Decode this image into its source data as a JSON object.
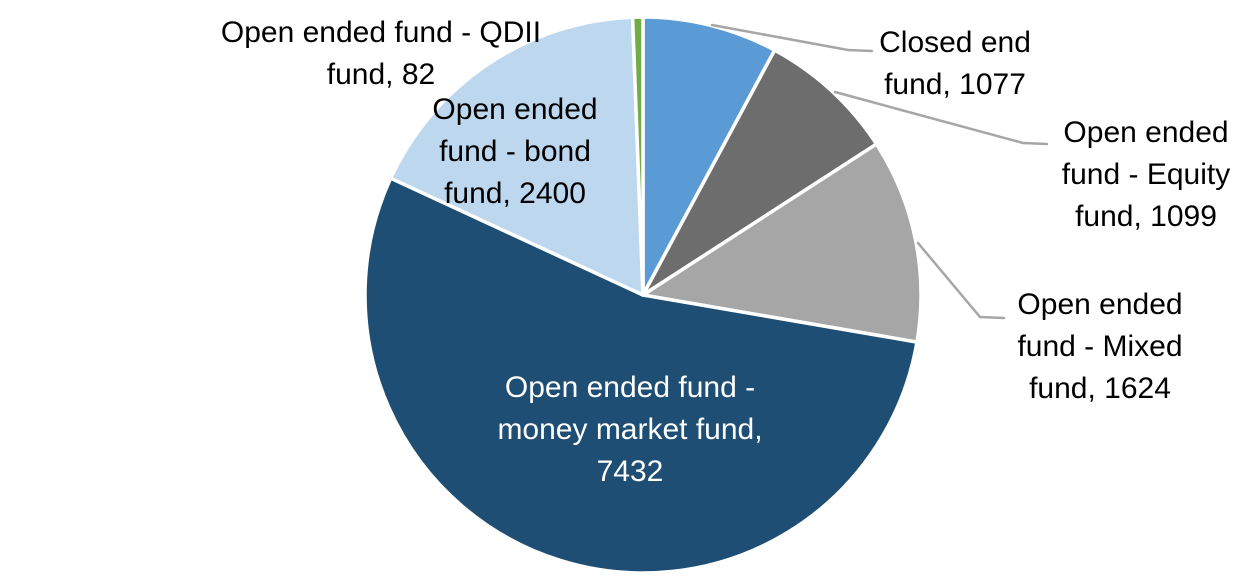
{
  "chart_data": {
    "type": "pie",
    "title": "",
    "legend_position": "none",
    "start_angle_deg": 0,
    "direction": "clockwise",
    "total": 13714,
    "data_label_format": "name, value",
    "background_color": "#FFFFFF",
    "leader_line_color": "#A6A6A6",
    "slices": [
      {
        "id": "closed-end-fund",
        "label": "Closed end fund",
        "value": 1077,
        "color": "#5B9BD5",
        "callout": "Closed end\nfund, 1077"
      },
      {
        "id": "open-ended-equity-fund",
        "label": "Open ended fund - Equity fund",
        "value": 1099,
        "color": "#6D6D6D",
        "callout": "Open ended\nfund - Equity\nfund, 1099"
      },
      {
        "id": "open-ended-mixed-fund",
        "label": "Open ended fund - Mixed fund",
        "value": 1624,
        "color": "#A6A6A6",
        "callout": "Open ended\nfund - Mixed\nfund, 1624"
      },
      {
        "id": "open-ended-money-market-fund",
        "label": "Open ended fund - money market fund",
        "value": 7432,
        "color": "#1F4E74",
        "callout": "Open ended fund -\nmoney market fund,\n7432",
        "label_placement": "inside",
        "label_color": "#FFFFFF"
      },
      {
        "id": "open-ended-bond-fund",
        "label": "Open ended fund - bond fund",
        "value": 2400,
        "color": "#BDD7EE",
        "callout": "Open ended\nfund - bond\nfund, 2400"
      },
      {
        "id": "open-ended-qdii-fund",
        "label": "Open ended fund - QDII fund",
        "value": 82,
        "color": "#70AD47",
        "callout": "Open ended fund - QDII\nfund, 82"
      }
    ]
  }
}
